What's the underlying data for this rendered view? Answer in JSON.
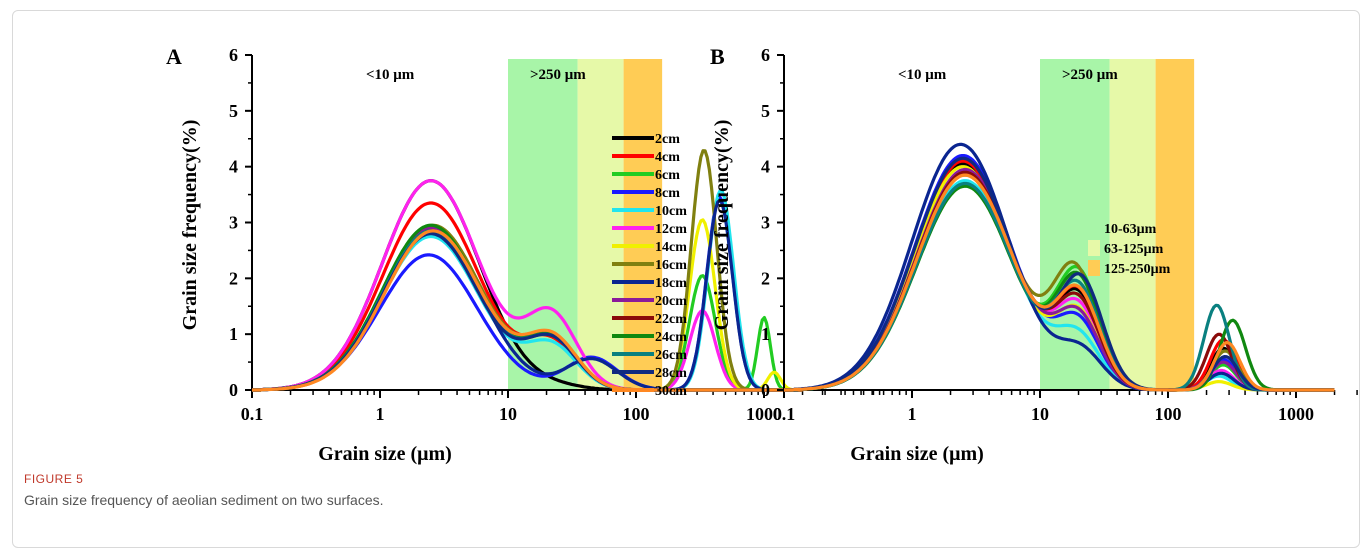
{
  "figure": {
    "label": "FIGURE 5",
    "caption": "Grain size frequency of aeolian sediment on two surfaces."
  },
  "colors": {
    "band_10_63": "#a8f5a8",
    "band_63_125": "#e6f9a8",
    "band_125_250": "#ffcc55"
  },
  "chart_data": [
    {
      "panel": "A",
      "type": "line",
      "xscale": "log",
      "xlabel": "Grain size (μm)",
      "ylabel": "Grain size frequency(%)",
      "xlim": [
        0.1,
        8000
      ],
      "ylim": [
        0,
        6
      ],
      "xticks": [
        "0.1",
        "1",
        "10",
        "100",
        "1000"
      ],
      "yticks": [
        "0",
        "1",
        "2",
        "3",
        "4",
        "5",
        "6"
      ],
      "annotations": [
        "<10 μm",
        ">250 μm"
      ],
      "bands": [
        [
          10,
          35
        ],
        [
          35,
          80
        ],
        [
          80,
          160
        ]
      ],
      "legend_placement": "right",
      "series": [
        {
          "name": "2cm",
          "color": "#000000",
          "peak1": [
            2.5,
            3.75
          ],
          "mid": [
            25,
            0.05
          ],
          "peak2": [
            400,
            0.0
          ]
        },
        {
          "name": "4cm",
          "color": "#ff0000",
          "peak1": [
            2.5,
            3.35
          ],
          "mid": [
            22,
            0.8
          ],
          "peak2": [
            380,
            0.0
          ]
        },
        {
          "name": "6cm",
          "color": "#22cc22",
          "peak1": [
            2.5,
            2.95
          ],
          "mid": [
            22,
            0.85
          ],
          "peak2": [
            330,
            2.05
          ],
          "peak3": [
            1000,
            1.3
          ]
        },
        {
          "name": "8cm",
          "color": "#1a1aff",
          "peak1": [
            2.4,
            2.42
          ],
          "mid": [
            45,
            0.58
          ],
          "peak2": [
            450,
            3.45
          ]
        },
        {
          "name": "10cm",
          "color": "#22e5ee",
          "peak1": [
            2.5,
            2.75
          ],
          "mid": [
            22,
            0.75
          ],
          "peak2": [
            460,
            3.58
          ]
        },
        {
          "name": "12cm",
          "color": "#ff22ee",
          "peak1": [
            2.5,
            3.75
          ],
          "mid": [
            22,
            1.28
          ],
          "peak2": [
            330,
            1.42
          ]
        },
        {
          "name": "14cm",
          "color": "#f0f000",
          "peak1": [
            2.5,
            2.85
          ],
          "mid": [
            22,
            0.85
          ],
          "peak2": [
            330,
            3.05
          ],
          "peak3": [
            1200,
            0.32
          ]
        },
        {
          "name": "16cm",
          "color": "#808010",
          "peak1": [
            2.6,
            2.95
          ],
          "mid": [
            22,
            0.85
          ],
          "peak2": [
            340,
            4.3
          ]
        },
        {
          "name": "18cm",
          "color": "#0a2590",
          "peak1": [
            2.5,
            2.9
          ],
          "mid": [
            45,
            0.55
          ],
          "peak2": [
            450,
            3.4
          ]
        },
        {
          "name": "20cm",
          "color": "#8a1a9a",
          "peak1": [
            2.5,
            2.9
          ],
          "mid": [
            22,
            0.85
          ],
          "peak2": [
            400,
            0.0
          ]
        },
        {
          "name": "22cm",
          "color": "#8a0a0a",
          "peak1": [
            2.5,
            2.85
          ],
          "mid": [
            22,
            0.85
          ],
          "peak2": [
            400,
            0.0
          ]
        },
        {
          "name": "24cm",
          "color": "#108810",
          "peak1": [
            2.5,
            2.95
          ],
          "mid": [
            22,
            0.9
          ],
          "peak2": [
            400,
            0.0
          ]
        },
        {
          "name": "26cm",
          "color": "#0a8080",
          "peak1": [
            2.5,
            2.85
          ],
          "mid": [
            22,
            0.85
          ],
          "peak2": [
            400,
            0.0
          ]
        },
        {
          "name": "28cm",
          "color": "#102a80",
          "peak1": [
            2.5,
            2.8
          ],
          "mid": [
            22,
            0.85
          ],
          "peak2": [
            400,
            0.0
          ]
        },
        {
          "name": "30cm",
          "color": "#ff8822",
          "peak1": [
            2.6,
            2.85
          ],
          "mid": [
            22,
            0.9
          ],
          "peak2": [
            400,
            0.0
          ]
        }
      ]
    },
    {
      "panel": "B",
      "type": "line",
      "xscale": "log",
      "xlabel": "Grain size (μm)",
      "ylabel": "Grain size frequency(%)",
      "xlim": [
        0.1,
        8000
      ],
      "ylim": [
        0,
        6
      ],
      "xticks": [
        "0.1",
        "1",
        "10",
        "100",
        "1000"
      ],
      "yticks": [
        "0",
        "1",
        "2",
        "3",
        "4",
        "5",
        "6"
      ],
      "annotations": [
        "<10 μm",
        ">250 μm"
      ],
      "bands": [
        [
          10,
          35
        ],
        [
          35,
          80
        ],
        [
          80,
          160
        ]
      ],
      "legend": [
        "10-63μm",
        "63-125μm",
        "125-250μm"
      ],
      "legend_placement": "right",
      "series": [
        {
          "color": "#000000",
          "peak1": [
            2.5,
            4.05
          ],
          "mid": [
            20,
            1.55
          ],
          "peak2": [
            270,
            0.75
          ]
        },
        {
          "color": "#ff0000",
          "peak1": [
            2.5,
            4.1
          ],
          "mid": [
            20,
            1.6
          ],
          "peak2": [
            270,
            0.9
          ]
        },
        {
          "color": "#22cc22",
          "peak1": [
            2.6,
            3.7
          ],
          "mid": [
            20,
            1.95
          ],
          "peak2": [
            270,
            0.45
          ]
        },
        {
          "color": "#1a1aff",
          "peak1": [
            2.5,
            4.2
          ],
          "mid": [
            20,
            1.1
          ],
          "peak2": [
            270,
            0.55
          ]
        },
        {
          "color": "#22e5ee",
          "peak1": [
            2.6,
            3.75
          ],
          "mid": [
            20,
            0.85
          ],
          "peak2": [
            250,
            0.25
          ]
        },
        {
          "color": "#ff22ee",
          "peak1": [
            2.6,
            3.9
          ],
          "mid": [
            20,
            1.35
          ],
          "peak2": [
            260,
            0.35
          ]
        },
        {
          "color": "#f0f000",
          "peak1": [
            2.5,
            4.0
          ],
          "mid": [
            20,
            1.25
          ],
          "peak2": [
            250,
            0.15
          ]
        },
        {
          "color": "#808010",
          "peak1": [
            2.6,
            3.85
          ],
          "mid": [
            19,
            1.98
          ],
          "peak2": [
            280,
            0.7
          ]
        },
        {
          "color": "#0a2590",
          "peak1": [
            2.4,
            4.4
          ],
          "mid": [
            21,
            0.62
          ],
          "peak2": [
            260,
            0.3
          ]
        },
        {
          "color": "#8a1a9a",
          "peak1": [
            2.6,
            3.95
          ],
          "mid": [
            20,
            1.2
          ],
          "peak2": [
            270,
            0.5
          ]
        },
        {
          "color": "#8a0a0a",
          "peak1": [
            2.6,
            3.9
          ],
          "mid": [
            20,
            1.45
          ],
          "peak2": [
            250,
            1.0
          ]
        },
        {
          "color": "#108810",
          "peak1": [
            2.6,
            3.65
          ],
          "mid": [
            20,
            1.85
          ],
          "peak2": [
            320,
            1.25
          ]
        },
        {
          "color": "#0a8080",
          "peak1": [
            2.6,
            3.7
          ],
          "mid": [
            20,
            1.7
          ],
          "peak2": [
            240,
            1.52
          ]
        },
        {
          "color": "#102a80",
          "peak1": [
            2.5,
            4.15
          ],
          "mid": [
            21,
            1.85
          ],
          "peak2": [
            280,
            0.6
          ]
        },
        {
          "color": "#ff8822",
          "peak1": [
            2.6,
            3.85
          ],
          "mid": [
            20,
            1.6
          ],
          "peak2": [
            290,
            0.85
          ]
        }
      ]
    }
  ]
}
